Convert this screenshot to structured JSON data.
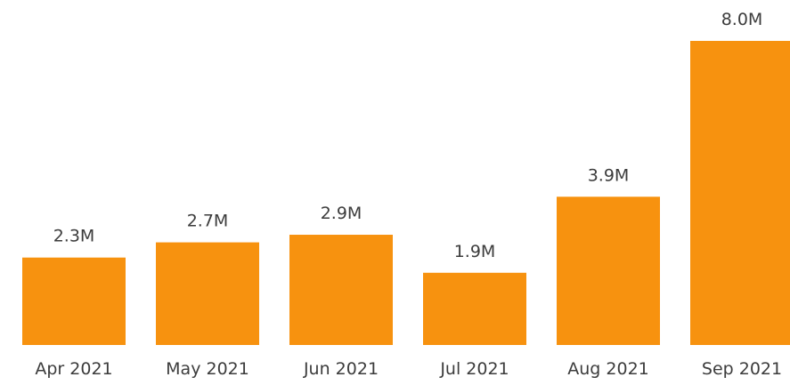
{
  "chart_data": {
    "type": "bar",
    "categories": [
      "Apr 2021",
      "May 2021",
      "Jun 2021",
      "Jul 2021",
      "Aug 2021",
      "Sep 2021"
    ],
    "values": [
      2.3,
      2.7,
      2.9,
      1.9,
      3.9,
      8.0
    ],
    "data_labels": [
      "2.3M",
      "2.7M",
      "2.9M",
      "1.9M",
      "3.9M",
      "8.0M"
    ],
    "title": "",
    "xlabel": "",
    "ylabel": "",
    "ylim": [
      0,
      8.0
    ],
    "grid": false,
    "legend": "none",
    "bar_color": "#F7920F"
  }
}
